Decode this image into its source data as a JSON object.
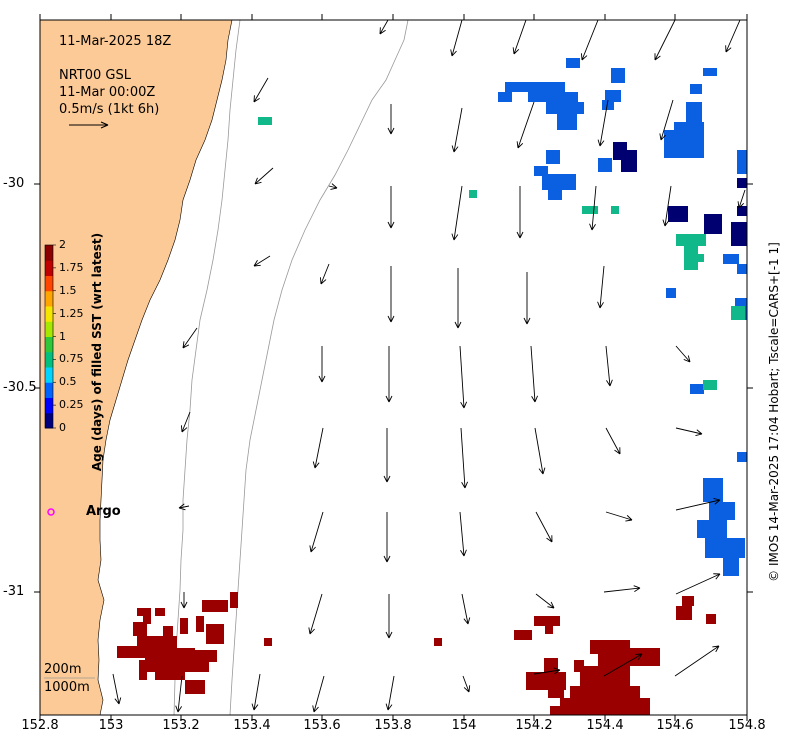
{
  "header": {
    "datetime": "11-Mar-2025 18Z",
    "product": "NRT00 GSL",
    "product_time": "11-Mar 00:00Z",
    "scale_label": "0.5m/s (1kt 6h)"
  },
  "colorbar": {
    "title": "Age (days) of filled SST (wrt latest)",
    "tick_labels": [
      "2",
      "1.75",
      "1.5",
      "1.25",
      "1",
      "0.75",
      "0.5",
      "0.25",
      "0"
    ],
    "colors": [
      "#00007f",
      "#0000ff",
      "#0063ff",
      "#00d4ff",
      "#00c080",
      "#2ec83a",
      "#a6e800",
      "#f5e600",
      "#ffa500",
      "#ff4500",
      "#c00000",
      "#8b0000"
    ]
  },
  "axes": {
    "x_ticks": [
      "152.8",
      "153",
      "153.2",
      "153.4",
      "153.6",
      "153.8",
      "154",
      "154.2",
      "154.4",
      "154.6",
      "154.8"
    ],
    "y_ticks": [
      "-30",
      "-30.5",
      "-31"
    ]
  },
  "legend": {
    "argo_label": "Argo",
    "isobath_200": "200m",
    "isobath_1000": "1000m"
  },
  "credit": "© IMOS 14-Mar-2025 17:04 Hobart; Tscale=CARS+[-1 1]",
  "colors": {
    "land": "#fcca96",
    "age_2": "#9b0000",
    "age_05": "#0a60e0",
    "age_0": "#000070",
    "age_075": "#10b88a",
    "argo": "#ff00ff"
  }
}
